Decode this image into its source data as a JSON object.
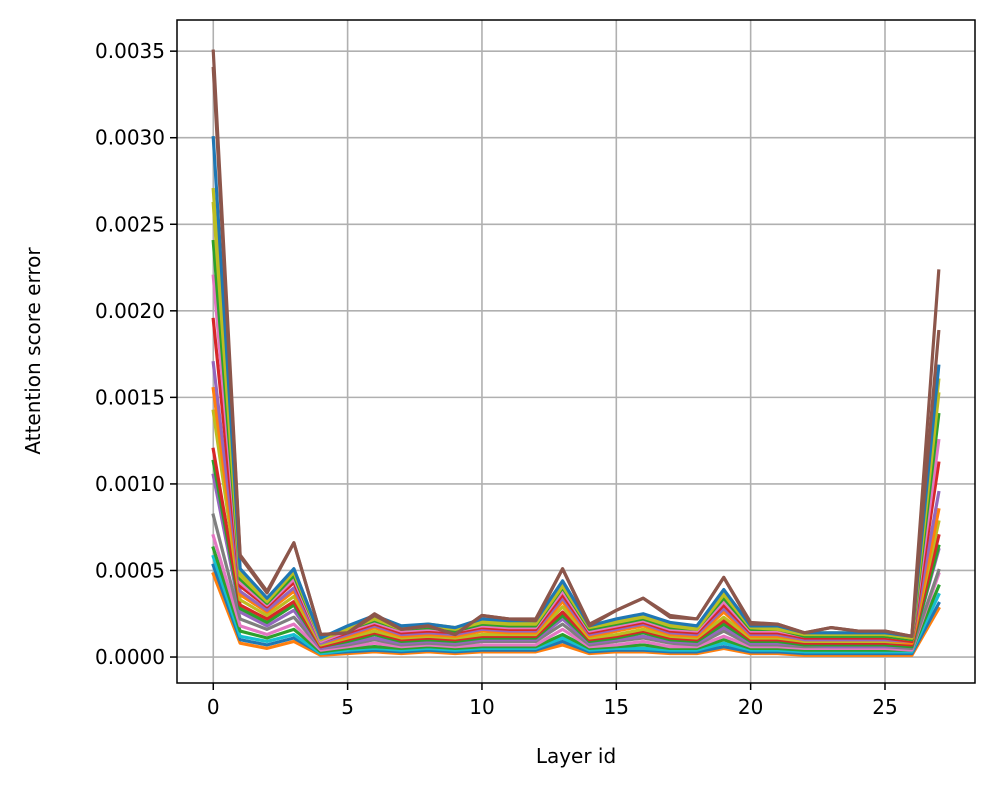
{
  "chart_data": {
    "type": "line",
    "title": "",
    "xlabel": "Layer id",
    "ylabel": "Attention score error",
    "xlim": [
      -1.35,
      28.35
    ],
    "ylim": [
      -0.00015,
      0.00368
    ],
    "xticks": [
      0,
      5,
      10,
      15,
      20,
      25
    ],
    "xtick_labels": [
      "0",
      "5",
      "10",
      "15",
      "20",
      "25"
    ],
    "yticks": [
      0.0,
      0.0005,
      0.001,
      0.0015,
      0.002,
      0.0025,
      0.003,
      0.0035
    ],
    "ytick_labels": [
      "0.0000",
      "0.0005",
      "0.0010",
      "0.0015",
      "0.0020",
      "0.0025",
      "0.0030",
      "0.0035"
    ],
    "grid": true,
    "legend": "none",
    "x": [
      0,
      1,
      2,
      3,
      4,
      5,
      6,
      7,
      8,
      9,
      10,
      11,
      12,
      13,
      14,
      15,
      16,
      17,
      18,
      19,
      20,
      21,
      22,
      23,
      24,
      25,
      26,
      27
    ],
    "series": [
      {
        "color": "#ff7f0e",
        "values": [
          0.00048,
          8e-05,
          5e-05,
          9e-05,
          1e-05,
          2e-05,
          3e-05,
          2e-05,
          3e-05,
          2e-05,
          3e-05,
          3e-05,
          3e-05,
          7e-05,
          2e-05,
          3e-05,
          3e-05,
          2e-05,
          2e-05,
          5e-05,
          2e-05,
          2e-05,
          1e-05,
          1e-05,
          1e-05,
          1e-05,
          1e-05,
          0.00028
        ]
      },
      {
        "color": "#1f77b4",
        "values": [
          0.00053,
          0.0001,
          7e-05,
          0.00011,
          2e-05,
          3e-05,
          4e-05,
          3e-05,
          4e-05,
          3e-05,
          4e-05,
          4e-05,
          4e-05,
          9e-05,
          3e-05,
          4e-05,
          4e-05,
          3e-05,
          3e-05,
          6e-05,
          3e-05,
          3e-05,
          2e-05,
          2e-05,
          2e-05,
          2e-05,
          2e-05,
          0.00031
        ]
      },
      {
        "color": "#17becf",
        "values": [
          0.00058,
          0.00012,
          9e-05,
          0.00013,
          2e-05,
          4e-05,
          5e-05,
          4e-05,
          5e-05,
          4e-05,
          5e-05,
          5e-05,
          5e-05,
          0.00011,
          4e-05,
          5e-05,
          5e-05,
          4e-05,
          4e-05,
          8e-05,
          4e-05,
          4e-05,
          3e-05,
          3e-05,
          3e-05,
          3e-05,
          3e-05,
          0.00036
        ]
      },
      {
        "color": "#2ca02c",
        "values": [
          0.00063,
          0.00015,
          0.00011,
          0.00016,
          3e-05,
          5e-05,
          6e-05,
          5e-05,
          6e-05,
          5e-05,
          6e-05,
          6e-05,
          6e-05,
          0.00013,
          5e-05,
          6e-05,
          7e-05,
          5e-05,
          5e-05,
          0.0001,
          5e-05,
          5e-05,
          4e-05,
          4e-05,
          4e-05,
          4e-05,
          4e-05,
          0.00041
        ]
      },
      {
        "color": "#e377c2",
        "values": [
          0.0007,
          0.00018,
          0.00013,
          0.00019,
          4e-05,
          6e-05,
          8e-05,
          6e-05,
          7e-05,
          6e-05,
          7e-05,
          7e-05,
          7e-05,
          0.00016,
          6e-05,
          7e-05,
          9e-05,
          6e-05,
          6e-05,
          0.00012,
          6e-05,
          6e-05,
          5e-05,
          5e-05,
          5e-05,
          5e-05,
          4e-05,
          0.00048
        ]
      },
      {
        "color": "#7f7f7f",
        "values": [
          0.00082,
          0.00022,
          0.00016,
          0.00023,
          5e-05,
          7e-05,
          0.0001,
          7e-05,
          8e-05,
          7e-05,
          9e-05,
          9e-05,
          9e-05,
          0.00019,
          7e-05,
          9e-05,
          0.00011,
          8e-05,
          7e-05,
          0.00015,
          7e-05,
          7e-05,
          6e-05,
          6e-05,
          6e-05,
          6e-05,
          5e-05,
          0.0005
        ]
      },
      {
        "color": "#9467bd",
        "values": [
          0.00105,
          0.00026,
          0.00018,
          0.00027,
          5e-05,
          8e-05,
          0.00011,
          8e-05,
          9e-05,
          8e-05,
          0.0001,
          0.0001,
          0.0001,
          0.00022,
          8e-05,
          0.0001,
          0.00012,
          9e-05,
          8e-05,
          0.00017,
          8e-05,
          8e-05,
          7e-05,
          6e-05,
          6e-05,
          6e-05,
          6e-05,
          0.00062
        ]
      },
      {
        "color": "#2ca02c",
        "values": [
          0.00113,
          0.00028,
          0.0002,
          0.0003,
          6e-05,
          9e-05,
          0.00013,
          9e-05,
          0.0001,
          9e-05,
          0.00011,
          0.00011,
          0.00011,
          0.00024,
          9e-05,
          0.00011,
          0.00014,
          0.0001,
          9e-05,
          0.00019,
          9e-05,
          9e-05,
          7e-05,
          7e-05,
          7e-05,
          7e-05,
          6e-05,
          0.00064
        ]
      },
      {
        "color": "#d62728",
        "values": [
          0.0012,
          0.0003,
          0.00022,
          0.00032,
          6e-05,
          0.0001,
          0.00014,
          0.0001,
          0.00011,
          0.0001,
          0.00012,
          0.00012,
          0.00012,
          0.00026,
          0.0001,
          0.00012,
          0.00015,
          0.00011,
          0.0001,
          0.00021,
          0.0001,
          0.0001,
          8e-05,
          8e-05,
          8e-05,
          8e-05,
          7e-05,
          0.0007
        ]
      },
      {
        "color": "#bcbd22",
        "values": [
          0.00142,
          0.00033,
          0.00024,
          0.00035,
          7e-05,
          0.00011,
          0.00015,
          0.00011,
          0.00012,
          0.00011,
          0.00013,
          0.00013,
          0.00013,
          0.00029,
          0.00011,
          0.00013,
          0.00016,
          0.00012,
          0.00011,
          0.00023,
          0.00011,
          0.00011,
          9e-05,
          9e-05,
          9e-05,
          9e-05,
          8e-05,
          0.00078
        ]
      },
      {
        "color": "#ff7f0e",
        "values": [
          0.00155,
          0.00036,
          0.00026,
          0.00038,
          8e-05,
          0.00012,
          0.00017,
          0.00012,
          0.00013,
          0.00012,
          0.00015,
          0.00014,
          0.00014,
          0.00032,
          0.00012,
          0.00015,
          0.00018,
          0.00013,
          0.00012,
          0.00026,
          0.00012,
          0.00012,
          0.0001,
          0.0001,
          0.0001,
          0.0001,
          8e-05,
          0.00085
        ]
      },
      {
        "color": "#9467bd",
        "values": [
          0.0017,
          0.00038,
          0.00027,
          0.0004,
          8e-05,
          0.00013,
          0.00018,
          0.00013,
          0.00014,
          0.00013,
          0.00016,
          0.00015,
          0.00015,
          0.00034,
          0.00013,
          0.00016,
          0.00019,
          0.00014,
          0.00013,
          0.00028,
          0.00013,
          0.00013,
          0.0001,
          0.0001,
          0.0001,
          0.0001,
          9e-05,
          0.00095
        ]
      },
      {
        "color": "#d62728",
        "values": [
          0.00195,
          0.00041,
          0.00029,
          0.00043,
          9e-05,
          0.00014,
          0.00019,
          0.00014,
          0.00015,
          0.00014,
          0.00017,
          0.00016,
          0.00016,
          0.00036,
          0.00014,
          0.00017,
          0.0002,
          0.00015,
          0.00014,
          0.0003,
          0.00014,
          0.00014,
          0.00011,
          0.00011,
          0.00011,
          0.00011,
          9e-05,
          0.00112
        ]
      },
      {
        "color": "#e377c2",
        "values": [
          0.0022,
          0.00043,
          0.0003,
          0.00045,
          9e-05,
          0.00015,
          0.0002,
          0.00015,
          0.00016,
          0.00015,
          0.00018,
          0.00017,
          0.00017,
          0.00038,
          0.00015,
          0.00018,
          0.00021,
          0.00016,
          0.00015,
          0.00032,
          0.00015,
          0.00015,
          0.00012,
          0.00012,
          0.00012,
          0.00012,
          0.0001,
          0.00125
        ]
      },
      {
        "color": "#2ca02c",
        "values": [
          0.0024,
          0.00045,
          0.00031,
          0.00047,
          0.0001,
          0.00016,
          0.00021,
          0.00016,
          0.00017,
          0.00015,
          0.00019,
          0.00018,
          0.00018,
          0.0004,
          0.00016,
          0.00019,
          0.00022,
          0.00017,
          0.00016,
          0.00034,
          0.00016,
          0.00016,
          0.00012,
          0.00012,
          0.00012,
          0.00012,
          0.0001,
          0.0014
        ]
      },
      {
        "color": "#bcbd22",
        "values": [
          0.00262,
          0.00047,
          0.00032,
          0.00049,
          0.0001,
          0.00016,
          0.00022,
          0.00016,
          0.00018,
          0.00016,
          0.0002,
          0.00019,
          0.00019,
          0.00041,
          0.00017,
          0.0002,
          0.00023,
          0.00018,
          0.00016,
          0.00036,
          0.00017,
          0.00016,
          0.00013,
          0.00013,
          0.00013,
          0.00013,
          0.00011,
          0.00152
        ]
      },
      {
        "color": "#bcbd22",
        "values": [
          0.0027,
          0.00049,
          0.00033,
          0.0005,
          0.00011,
          0.00017,
          0.00023,
          0.00017,
          0.00019,
          0.00017,
          0.00021,
          0.0002,
          0.0002,
          0.00043,
          0.00018,
          0.00021,
          0.00024,
          0.00019,
          0.00017,
          0.00038,
          0.00018,
          0.00017,
          0.00014,
          0.00014,
          0.00014,
          0.00013,
          0.00011,
          0.0016
        ]
      },
      {
        "color": "#1f77b4",
        "values": [
          0.003,
          0.00051,
          0.00034,
          0.00051,
          0.00011,
          0.00018,
          0.00024,
          0.00018,
          0.00019,
          0.00017,
          0.00022,
          0.00021,
          0.00021,
          0.00044,
          0.00018,
          0.00022,
          0.00025,
          0.0002,
          0.00018,
          0.00039,
          0.00018,
          0.00018,
          0.00014,
          0.00014,
          0.00014,
          0.00014,
          0.00012,
          0.00168
        ]
      },
      {
        "color": "#8c564b",
        "values": [
          0.0034,
          0.00058,
          0.00037,
          0.00066,
          0.00013,
          0.00014,
          0.00024,
          0.00016,
          0.00018,
          0.00013,
          0.00024,
          0.00022,
          0.00021,
          0.00051,
          0.00018,
          0.00027,
          0.00034,
          0.00023,
          0.00022,
          0.00046,
          0.00019,
          0.00019,
          0.00014,
          0.00017,
          0.00015,
          0.00015,
          0.00012,
          0.00188
        ]
      },
      {
        "color": "#8c564b",
        "values": [
          0.0035,
          0.00059,
          0.00038,
          0.00066,
          0.00013,
          0.00014,
          0.00025,
          0.00016,
          0.00018,
          0.00013,
          0.00024,
          0.00022,
          0.00022,
          0.00051,
          0.00019,
          0.00027,
          0.00034,
          0.00024,
          0.00022,
          0.00046,
          0.0002,
          0.00019,
          0.00014,
          0.00017,
          0.00015,
          0.00015,
          0.00012,
          0.00223
        ]
      }
    ]
  }
}
